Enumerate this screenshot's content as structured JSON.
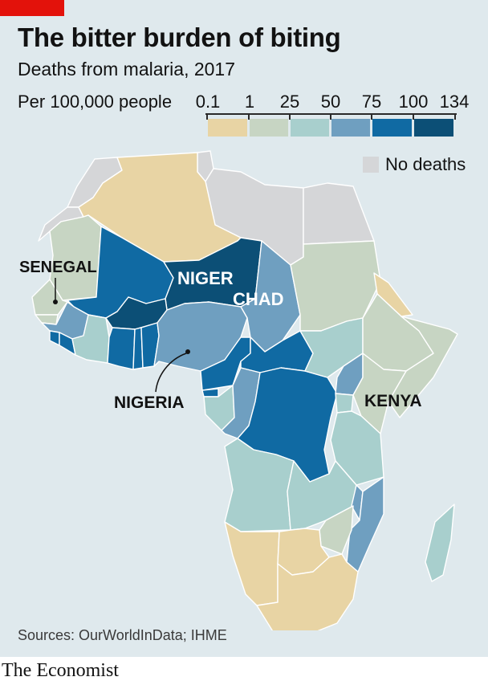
{
  "header": {
    "title": "The bitter burden of biting",
    "subtitle": "Deaths from malaria, 2017",
    "unit": "Per 100,000 people"
  },
  "legend": {
    "ticks": [
      "0.1",
      "1",
      "25",
      "50",
      "75",
      "100",
      "134"
    ],
    "bins": [
      {
        "range": "0.1–1",
        "color": "#e8d4a4"
      },
      {
        "range": "1–25",
        "color": "#c7d5c3"
      },
      {
        "range": "25–50",
        "color": "#a8cfcd"
      },
      {
        "range": "50–75",
        "color": "#6f9fc0"
      },
      {
        "range": "75–100",
        "color": "#106aa3"
      },
      {
        "range": "100–134",
        "color": "#0c4f76"
      }
    ],
    "no_deaths": {
      "label": "No deaths",
      "color": "#d5d6d8"
    }
  },
  "annotations": {
    "senegal": "SENEGAL",
    "niger": "NIGER",
    "chad": "CHAD",
    "nigeria": "NIGERIA",
    "kenya": "KENYA"
  },
  "footer": {
    "source": "Sources: OurWorldInData; IHME",
    "brand": "The Economist"
  }
}
